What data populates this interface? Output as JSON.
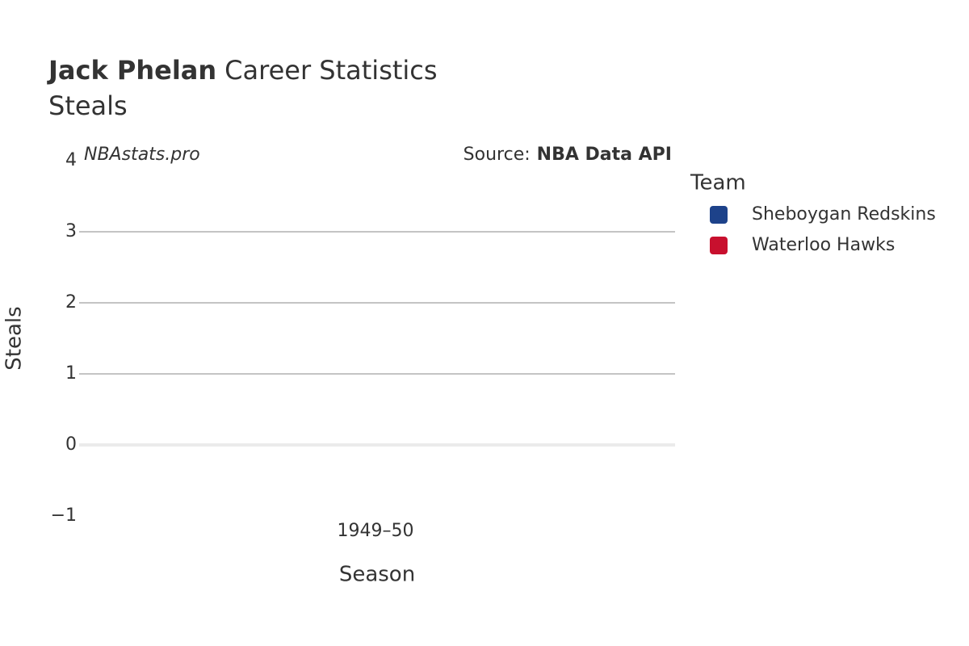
{
  "chart_data": {
    "type": "line",
    "title": {
      "name": "Jack Phelan",
      "rest": "Career Statistics"
    },
    "subtitle": "Steals",
    "watermark": "NBAstats.pro",
    "source": {
      "label": "Source:",
      "name": "NBA Data API"
    },
    "x_label": "Season",
    "y_label": "Steals",
    "categories": [
      "1949–50"
    ],
    "series": [
      {
        "name": "Sheboygan Redskins",
        "color": "#1d428a",
        "values": [
          null
        ]
      },
      {
        "name": "Waterloo Hawks",
        "color": "#c8102e",
        "values": [
          null
        ]
      }
    ],
    "legend_title": "Team",
    "legend": "right",
    "ylim": [
      -1,
      4
    ],
    "yticks": [
      {
        "value": -1,
        "label": "−1"
      },
      0,
      1,
      2,
      3,
      4
    ],
    "grid": true
  }
}
